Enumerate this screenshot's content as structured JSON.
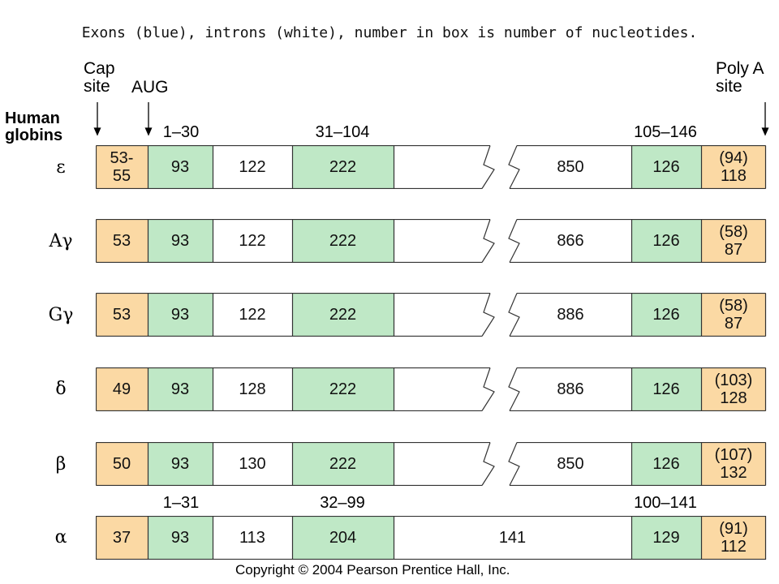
{
  "caption": "Exons (blue), introns (white), number in box is number of nucleotides.",
  "labels": {
    "cap_site_line1": "Cap",
    "cap_site_line2": "site",
    "aug": "AUG",
    "poly_a_line1": "Poly A",
    "poly_a_line2": "site",
    "human_line1": "Human",
    "human_line2": "globins"
  },
  "ranges_top": {
    "exon1": "1–30",
    "exon2": "31–104",
    "exon3": "105–146"
  },
  "ranges_alpha": {
    "exon1": "1–31",
    "exon2": "32–99",
    "exon3": "100–141"
  },
  "genes": [
    {
      "name": "ε",
      "utr5": "53-\n55",
      "exon1": "93",
      "intron1": "122",
      "exon2": "222",
      "intron2": "850",
      "exon3": "126",
      "utr3": "(94)\n118"
    },
    {
      "name": "Aγ",
      "utr5": "53",
      "exon1": "93",
      "intron1": "122",
      "exon2": "222",
      "intron2": "866",
      "exon3": "126",
      "utr3": "(58)\n87"
    },
    {
      "name": "Gγ",
      "utr5": "53",
      "exon1": "93",
      "intron1": "122",
      "exon2": "222",
      "intron2": "886",
      "exon3": "126",
      "utr3": "(58)\n87"
    },
    {
      "name": "δ",
      "utr5": "49",
      "exon1": "93",
      "intron1": "128",
      "exon2": "222",
      "intron2": "886",
      "exon3": "126",
      "utr3": "(103)\n128"
    },
    {
      "name": "β",
      "utr5": "50",
      "exon1": "93",
      "intron1": "130",
      "exon2": "222",
      "intron2": "850",
      "exon3": "126",
      "utr3": "(107)\n132"
    },
    {
      "name": "α",
      "utr5": "37",
      "exon1": "93",
      "intron1": "113",
      "exon2": "204",
      "intron2": "141",
      "exon3": "129",
      "utr3": "(91)\n112"
    }
  ],
  "copyright": "Copyright © 2004 Pearson Prentice Hall, Inc.",
  "colors": {
    "utr": "#fbd9a4",
    "exon": "#bfe8c6",
    "intron": "#ffffff",
    "outline": "#333333"
  }
}
